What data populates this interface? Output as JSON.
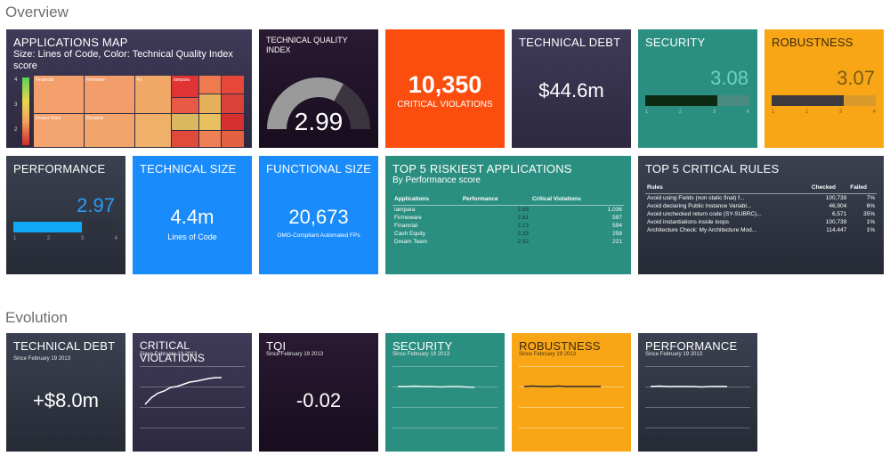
{
  "sections": {
    "overview": "Overview",
    "evolution": "Evolution"
  },
  "apps_map": {
    "title": "APPLICATIONS MAP",
    "subtitle": "Size: Lines of Code, Color: Technical Quality Index score",
    "legend": [
      "4",
      "3",
      "2"
    ],
    "cells": [
      "Financial",
      "Firmware",
      "Fx",
      "lampara",
      "Dynamic",
      "Dream Team"
    ]
  },
  "tqi": {
    "title": "TECHNICAL QUALITY INDEX",
    "value": "2.99",
    "fraction": 0.66
  },
  "violations": {
    "value": "10,350",
    "label": "CRITICAL VIOLATIONS"
  },
  "tech_debt": {
    "title": "TECHNICAL DEBT",
    "value": "$44.6m"
  },
  "security": {
    "title": "SECURITY",
    "value": "3.08",
    "fraction": 0.69,
    "ticks": [
      "1",
      "2",
      "3",
      "4"
    ]
  },
  "robustness": {
    "title": "ROBUSTNESS",
    "value": "3.07",
    "fraction": 0.69,
    "ticks": [
      "1",
      "2",
      "3",
      "4"
    ]
  },
  "performance": {
    "title": "PERFORMANCE",
    "value": "2.97",
    "fraction": 0.66,
    "ticks": [
      "1",
      "2",
      "3",
      "4"
    ]
  },
  "tech_size": {
    "title": "TECHNICAL SIZE",
    "value": "4.4m",
    "label": "Lines of Code"
  },
  "func_size": {
    "title": "FUNCTIONAL SIZE",
    "value": "20,673",
    "label": "OMG-Compliant Automated FPs"
  },
  "top_apps": {
    "title": "TOP 5 RISKIEST APPLICATIONS",
    "subtitle": "By Performance score",
    "headers": [
      "Applications",
      "Performance",
      "Critical Violations"
    ],
    "rows": [
      [
        "lampara",
        "2.88",
        "1,036"
      ],
      [
        "Firmeware",
        "2.81",
        "597"
      ],
      [
        "Financial",
        "2.13",
        "594"
      ],
      [
        "Cash Equity",
        "2.33",
        "258"
      ],
      [
        "Dream Team",
        "2.52",
        "221"
      ]
    ]
  },
  "top_rules": {
    "title": "TOP 5 CRITICAL RULES",
    "headers": [
      "Rules",
      "Checked",
      "Failed"
    ],
    "rows": [
      [
        "Avoid using Fields (non static final) f...",
        "100,739",
        "7%"
      ],
      [
        "Avoid declaring Public Instance Variabl...",
        "46,904",
        "6%"
      ],
      [
        "Avoid unchecked return code (SY-SUBRC)...",
        "6,571",
        "35%"
      ],
      [
        "Avoid instantiations inside loops",
        "100,739",
        "1%"
      ],
      [
        "Architecture Check: My Architecture Mod...",
        "114,447",
        "1%"
      ]
    ]
  },
  "evolution": {
    "since": "Since February 19 2013",
    "tech_debt": {
      "title": "TECHNICAL DEBT",
      "value": "+$8.0m"
    },
    "crit_viol": {
      "title": "CRITICAL VIOLATIONS",
      "trend": [
        0.2,
        0.35,
        0.45,
        0.5,
        0.58,
        0.6,
        0.65,
        0.7,
        0.72,
        0.75,
        0.78,
        0.8,
        0.8
      ]
    },
    "tqi": {
      "title": "TQI",
      "value": "-0.02"
    },
    "security": {
      "title": "SECURITY",
      "trend": [
        0.5,
        0.5,
        0.51,
        0.5,
        0.5,
        0.49,
        0.5,
        0.5,
        0.49,
        0.48
      ]
    },
    "robustness": {
      "title": "ROBUSTNESS",
      "trend": [
        0.5,
        0.51,
        0.5,
        0.5,
        0.51,
        0.5,
        0.5,
        0.5,
        0.5,
        0.5
      ]
    },
    "performance": {
      "title": "PERFORMANCE",
      "trend": [
        0.5,
        0.51,
        0.5,
        0.5,
        0.5,
        0.5,
        0.49,
        0.5,
        0.5,
        0.5
      ]
    }
  },
  "colors": {
    "orange_red": "#fb4d0e",
    "teal": "#2a8f80",
    "amber": "#f8a616",
    "blue": "#1a8bfa"
  }
}
